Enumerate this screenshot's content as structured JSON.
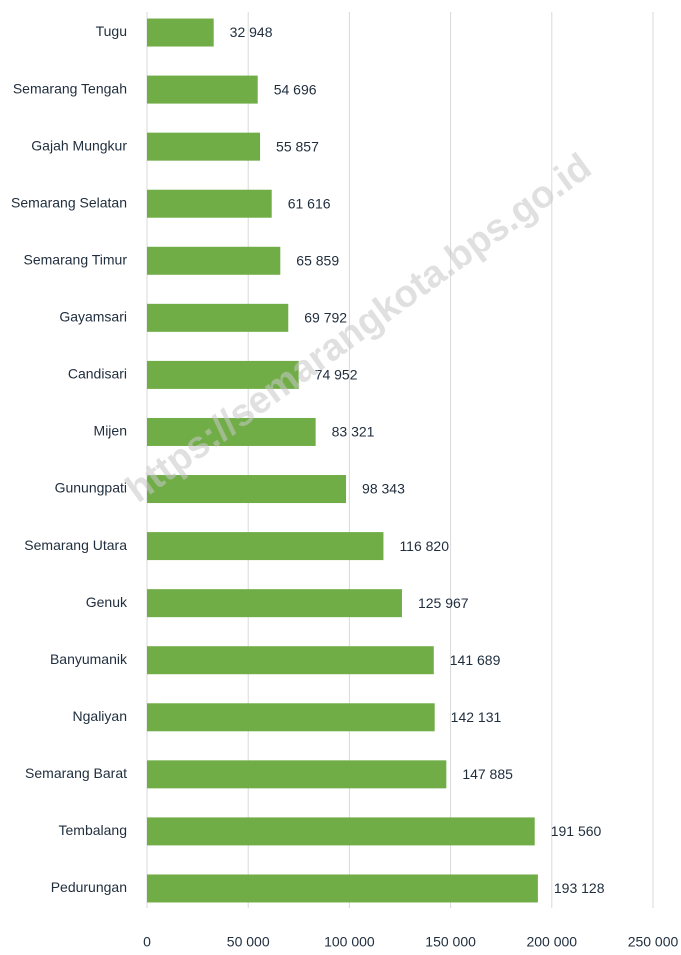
{
  "chart_data": {
    "type": "barh",
    "categories": [
      "Tugu",
      "Semarang Tengah",
      "Gajah Mungkur",
      "Semarang Selatan",
      "Semarang Timur",
      "Gayamsari",
      "Candisari",
      "Mijen",
      "Gunungpati",
      "Semarang Utara",
      "Genuk",
      "Banyumanik",
      "Ngaliyan",
      "Semarang Barat",
      "Tembalang",
      "Pedurungan"
    ],
    "values": [
      32948,
      54696,
      55857,
      61616,
      65859,
      69792,
      74952,
      83321,
      98343,
      116820,
      125967,
      141689,
      142131,
      147885,
      191560,
      193128
    ],
    "value_labels": [
      "32 948",
      "54 696",
      "55 857",
      "61 616",
      "65 859",
      "69 792",
      "74 952",
      "83 321",
      "98 343",
      "116 820",
      "125 967",
      "141 689",
      "142 131",
      "147 885",
      "191 560",
      "193 128"
    ],
    "color": "#70ad47",
    "xlim": [
      0,
      250000
    ],
    "xticks": [
      0,
      {
        "value": 50000,
        "label": "50 000"
      },
      {
        "value": 100000,
        "label": "100 000"
      },
      {
        "value": 150000,
        "label": "150 000"
      },
      {
        "value": 200000,
        "label": "200 000"
      },
      {
        "value": 250000,
        "label": "250 000"
      }
    ],
    "grid": true,
    "watermark": "https://semarangkota.bps.go.id"
  }
}
